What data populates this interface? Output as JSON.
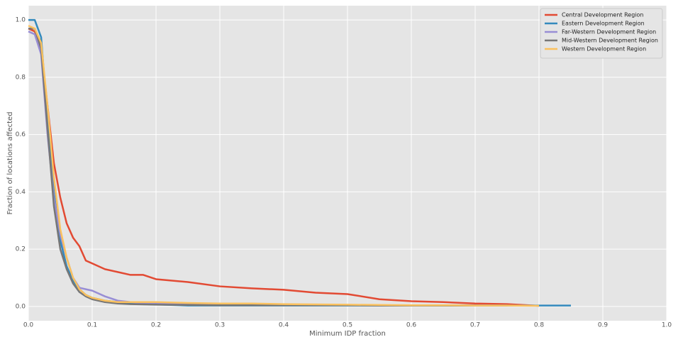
{
  "chart_data": {
    "type": "line",
    "x_label": "Minimum IDP fraction",
    "y_label": "Fraction of locations affected",
    "x": [
      0,
      0.01,
      0.02,
      0.03,
      0.04,
      0.05,
      0.06,
      0.07,
      0.08,
      0.09,
      0.1,
      0.12,
      0.14,
      0.16,
      0.18,
      0.2,
      0.25,
      0.3,
      0.35,
      0.4,
      0.45,
      0.5,
      0.55,
      0.6,
      0.65,
      0.7,
      0.75,
      0.8,
      0.85
    ],
    "series": [
      {
        "name": "Central Development Region",
        "color": "#E24A33",
        "values": [
          0.97,
          0.96,
          0.9,
          0.7,
          0.5,
          0.38,
          0.29,
          0.24,
          0.21,
          0.16,
          0.15,
          0.13,
          0.12,
          0.11,
          0.11,
          0.095,
          0.085,
          0.07,
          0.063,
          0.058,
          0.048,
          0.043,
          0.025,
          0.018,
          0.015,
          0.01,
          0.008,
          0.002,
          null
        ]
      },
      {
        "name": "Eastern Development Region",
        "color": "#348ABD",
        "values": [
          1.0,
          1.0,
          0.94,
          0.65,
          0.4,
          0.23,
          0.14,
          0.09,
          0.06,
          0.04,
          0.03,
          0.02,
          0.015,
          0.01,
          0.008,
          0.007,
          0.003,
          0.003,
          0.003,
          0.003,
          0.003,
          0.003,
          0.003,
          0.003,
          0.003,
          0.003,
          0.003,
          0.003,
          0.003
        ]
      },
      {
        "name": "Far-Western Development Region",
        "color": "#988ED5",
        "values": [
          0.96,
          0.95,
          0.88,
          0.6,
          0.38,
          0.25,
          0.17,
          0.1,
          0.065,
          0.06,
          0.055,
          0.035,
          0.02,
          0.015,
          0.012,
          0.01,
          0.008,
          0.005,
          0.005,
          0.005,
          0.004,
          0.004,
          0.004,
          0.004,
          0.004,
          0.004,
          0.003,
          null,
          null
        ]
      },
      {
        "name": "Mid-Western Development Region",
        "color": "#777777",
        "values": [
          0.97,
          0.97,
          0.9,
          0.62,
          0.35,
          0.2,
          0.13,
          0.08,
          0.05,
          0.035,
          0.025,
          0.015,
          0.01,
          0.008,
          0.007,
          0.006,
          0.005,
          0.004,
          0.004,
          0.004,
          0.004,
          0.004,
          0.003,
          0.003,
          0.003,
          0.003,
          0.003,
          null,
          null
        ]
      },
      {
        "name": "Western Development Region",
        "color": "#FBC15E",
        "values": [
          0.98,
          0.97,
          0.92,
          0.7,
          0.45,
          0.27,
          0.17,
          0.1,
          0.06,
          0.04,
          0.03,
          0.02,
          0.015,
          0.015,
          0.015,
          0.015,
          0.012,
          0.01,
          0.01,
          0.008,
          0.007,
          0.006,
          0.005,
          0.004,
          0.004,
          0.003,
          0.003,
          0.002,
          null
        ]
      }
    ],
    "xlim": [
      0,
      1
    ],
    "ylim": [
      -0.05,
      1.05
    ],
    "xticks": [
      {
        "value": 0,
        "label": "0.0"
      },
      0.1,
      0.2,
      0.3,
      0.4,
      0.5,
      0.6,
      0.7,
      0.8,
      0.9,
      {
        "value": 1,
        "label": "1.0"
      }
    ],
    "yticks": [
      {
        "value": 0,
        "label": "0.0"
      },
      0.2,
      0.4,
      0.6,
      0.8,
      {
        "value": 1,
        "label": "1.0"
      }
    ],
    "grid": true,
    "legend": "upper-right"
  }
}
